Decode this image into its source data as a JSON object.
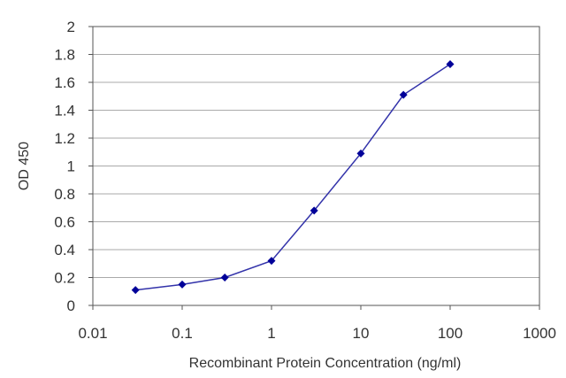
{
  "chart_data": {
    "type": "scatter",
    "title": "",
    "xlabel": "Recombinant Protein Concentration (ng/ml)",
    "ylabel": "OD 450",
    "x_scale": "log",
    "xlim": [
      0.01,
      1000
    ],
    "ylim": [
      0,
      2
    ],
    "x_ticks": [
      "0.01",
      "0.1",
      "1",
      "10",
      "100",
      "1000"
    ],
    "y_ticks": [
      "0",
      "0.2",
      "0.4",
      "0.6",
      "0.8",
      "1",
      "1.2",
      "1.4",
      "1.6",
      "1.8",
      "2"
    ],
    "grid": "horizontal",
    "legend": "none",
    "series": [
      {
        "x": [
          0.03,
          0.1,
          0.3,
          1,
          3,
          10,
          30,
          100
        ],
        "y": [
          0.11,
          0.15,
          0.2,
          0.32,
          0.68,
          1.09,
          1.51,
          1.73
        ]
      }
    ],
    "colors": {
      "line": "#3333aa",
      "marker": "#000099",
      "grid": "#aaaaaa",
      "axis": "#555555",
      "plot_background": "#ffffff"
    }
  }
}
